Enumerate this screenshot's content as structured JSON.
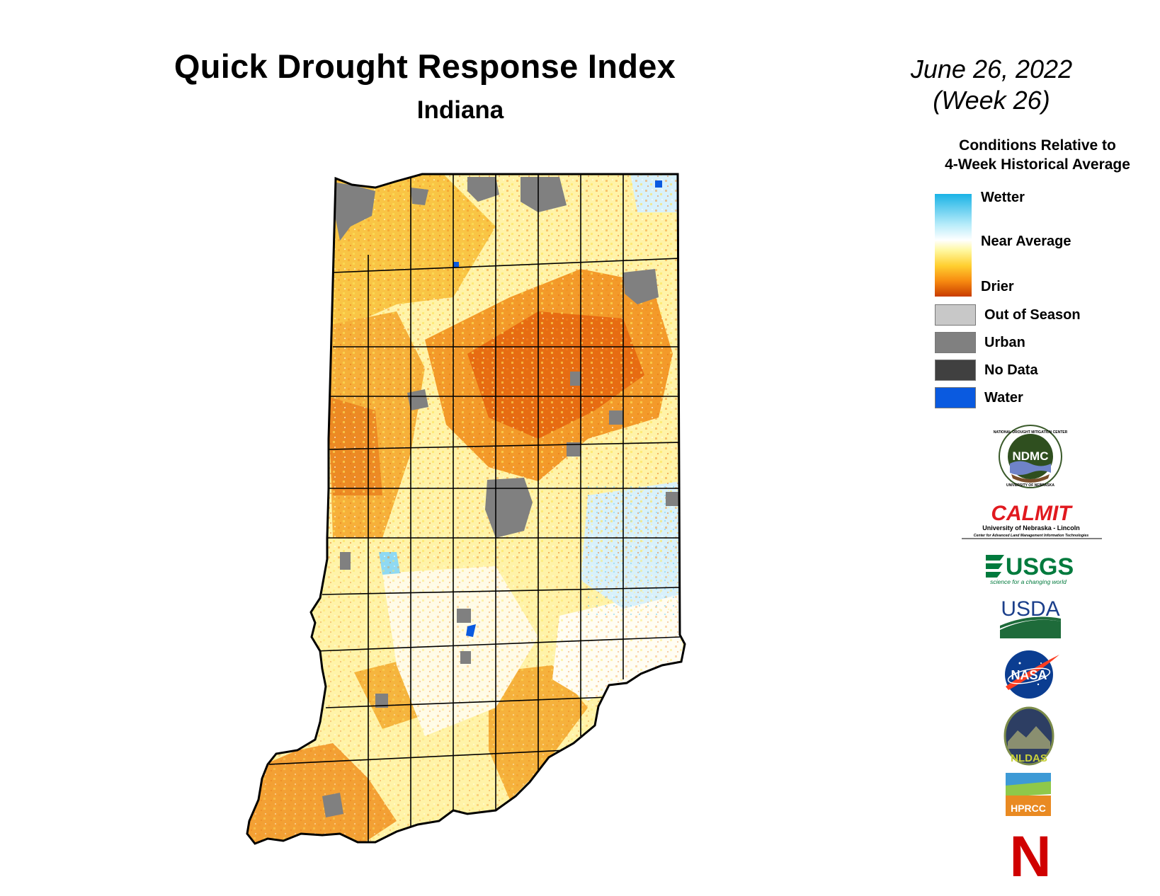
{
  "header": {
    "title": "Quick Drought Response Index",
    "subtitle": "Indiana",
    "date": "June 26, 2022",
    "week": "(Week 26)"
  },
  "legend": {
    "heading_line1": "Conditions Relative to",
    "heading_line2": "4-Week Historical Average",
    "ramp": {
      "wetter": "Wetter",
      "near_average": "Near Average",
      "drier": "Drier"
    },
    "categories": [
      {
        "label": "Out of Season",
        "color": "#c8c8c8"
      },
      {
        "label": "Urban",
        "color": "#808080"
      },
      {
        "label": "No Data",
        "color": "#404040"
      },
      {
        "label": "Water",
        "color": "#0a5ae0"
      }
    ]
  },
  "logos": [
    {
      "name": "NDMC",
      "text": "NDMC",
      "ring_top": "NATIONAL DROUGHT MITIGATION CENTER",
      "ring_bottom": "UNIVERSITY OF NEBRASKA"
    },
    {
      "name": "CALMIT",
      "text": "CALMIT",
      "line1": "University of Nebraska - Lincoln",
      "line2": "Center for Advanced Land Management Information Technologies"
    },
    {
      "name": "USGS",
      "text": "USGS",
      "tagline": "science for a changing world"
    },
    {
      "name": "USDA",
      "text": "USDA"
    },
    {
      "name": "NASA",
      "text": "NASA"
    },
    {
      "name": "NLDAS",
      "text": "NLDAS"
    },
    {
      "name": "HPRCC",
      "text": "HPRCC"
    },
    {
      "name": "Nebraska",
      "text": "N"
    }
  ],
  "colors": {
    "wet": "#37c3ee",
    "near_average": "#ffffff",
    "dry_light": "#fde96a",
    "dry_mid": "#f8b040",
    "dry_strong": "#ef7a1a",
    "urban": "#808080",
    "water": "#0a5ae0",
    "border": "#000000"
  }
}
